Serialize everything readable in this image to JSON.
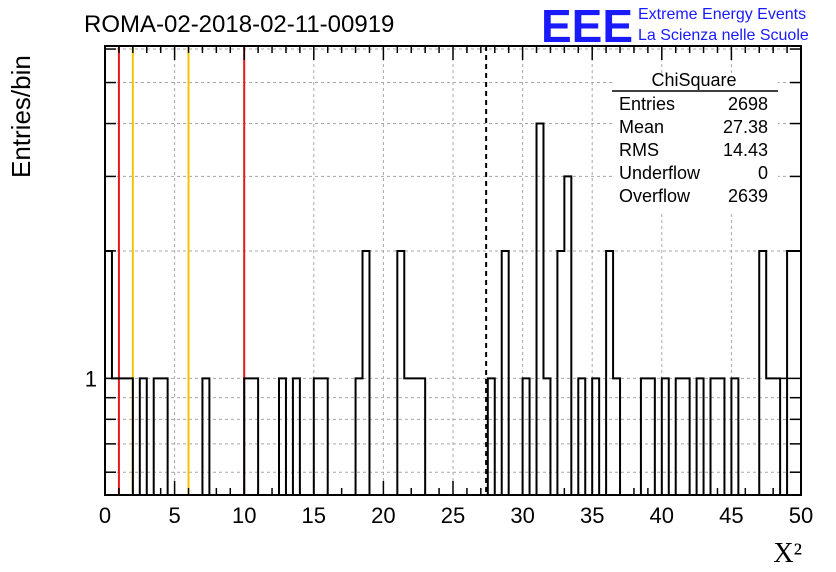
{
  "title": "ROMA-02-2018-02-11-00919",
  "logo": {
    "mark": "EEE",
    "line1": "Extreme Energy Events",
    "line2": "La Scienza nelle Scuole",
    "color": "#1a1aff"
  },
  "stats": {
    "name": "ChiSquare",
    "rows": [
      {
        "label": "Entries",
        "value": "2698"
      },
      {
        "label": "Mean",
        "value": "27.38"
      },
      {
        "label": "RMS",
        "value": "14.43"
      },
      {
        "label": "Underflow",
        "value": "0"
      },
      {
        "label": "Overflow",
        "value": "2639"
      }
    ]
  },
  "chart_data": {
    "type": "histogram",
    "xlabel": "X²",
    "ylabel": "Entries/bin",
    "xlim": [
      0,
      50
    ],
    "y_scale": "log",
    "ylim": [
      0.53,
      6.1
    ],
    "x_ticks": [
      0,
      5,
      10,
      15,
      20,
      25,
      30,
      35,
      40,
      45,
      50
    ],
    "x_tick_labels": [
      "0",
      "5",
      "10",
      "15",
      "20",
      "25",
      "30",
      "35",
      "40",
      "45",
      "50"
    ],
    "y_tick_labels": [
      {
        "value": 1,
        "label": "1"
      }
    ],
    "grid": true,
    "bin_width": 0.5,
    "bins": [
      {
        "x": 0.0,
        "y": 2
      },
      {
        "x": 0.5,
        "y": 1
      },
      {
        "x": 1.0,
        "y": 1
      },
      {
        "x": 1.5,
        "y": 1
      },
      {
        "x": 2.5,
        "y": 1
      },
      {
        "x": 3.5,
        "y": 1
      },
      {
        "x": 4.0,
        "y": 1
      },
      {
        "x": 7.0,
        "y": 1
      },
      {
        "x": 10.0,
        "y": 1
      },
      {
        "x": 10.5,
        "y": 1
      },
      {
        "x": 12.5,
        "y": 1
      },
      {
        "x": 13.5,
        "y": 1
      },
      {
        "x": 15.0,
        "y": 1
      },
      {
        "x": 15.5,
        "y": 1
      },
      {
        "x": 18.0,
        "y": 1
      },
      {
        "x": 18.5,
        "y": 2
      },
      {
        "x": 21.0,
        "y": 2
      },
      {
        "x": 21.5,
        "y": 1
      },
      {
        "x": 22.0,
        "y": 1
      },
      {
        "x": 22.5,
        "y": 1
      },
      {
        "x": 27.5,
        "y": 1
      },
      {
        "x": 28.5,
        "y": 2
      },
      {
        "x": 30.0,
        "y": 1
      },
      {
        "x": 31.0,
        "y": 4
      },
      {
        "x": 31.5,
        "y": 1
      },
      {
        "x": 32.5,
        "y": 2
      },
      {
        "x": 33.0,
        "y": 3
      },
      {
        "x": 34.0,
        "y": 1
      },
      {
        "x": 35.0,
        "y": 1
      },
      {
        "x": 36.0,
        "y": 2
      },
      {
        "x": 36.5,
        "y": 1
      },
      {
        "x": 38.5,
        "y": 1
      },
      {
        "x": 39.0,
        "y": 1
      },
      {
        "x": 40.0,
        "y": 1
      },
      {
        "x": 41.0,
        "y": 1
      },
      {
        "x": 41.5,
        "y": 1
      },
      {
        "x": 42.5,
        "y": 1
      },
      {
        "x": 43.5,
        "y": 1
      },
      {
        "x": 44.0,
        "y": 1
      },
      {
        "x": 45.0,
        "y": 1
      },
      {
        "x": 47.0,
        "y": 2
      },
      {
        "x": 47.5,
        "y": 1
      },
      {
        "x": 48.0,
        "y": 1
      },
      {
        "x": 49.0,
        "y": 2
      },
      {
        "x": 49.5,
        "y": 2
      }
    ],
    "vertical_lines": [
      {
        "x": 1,
        "color": "#e41a1c",
        "style": "solid"
      },
      {
        "x": 2,
        "color": "#f5c400",
        "style": "solid"
      },
      {
        "x": 6,
        "color": "#f5c400",
        "style": "solid"
      },
      {
        "x": 10,
        "color": "#e41a1c",
        "style": "solid"
      },
      {
        "x": 27.38,
        "color": "#000000",
        "style": "dashed"
      }
    ]
  }
}
